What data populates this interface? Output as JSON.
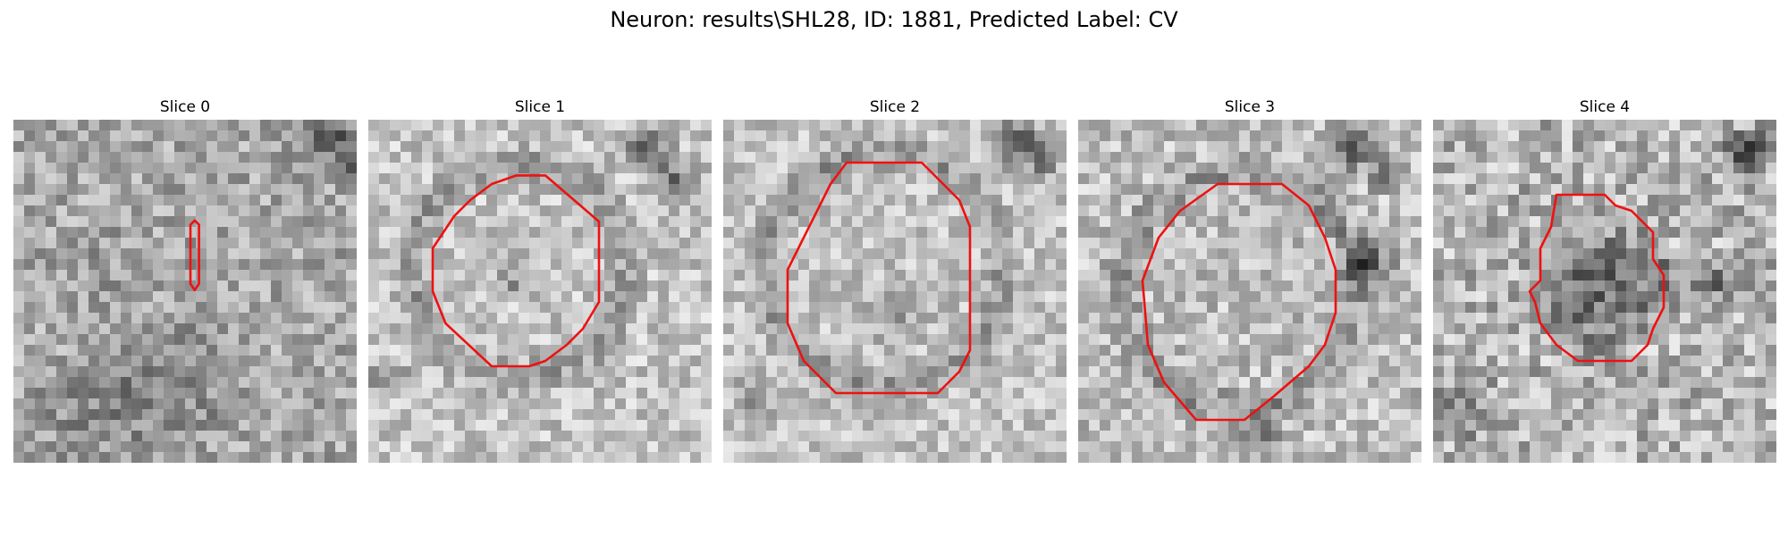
{
  "figure": {
    "title": "Neuron: results\\SHL28, ID: 1881, Predicted Label: CV"
  },
  "panels": [
    {
      "title": "Slice 0",
      "has_outline": true
    },
    {
      "title": "Slice 1",
      "has_outline": true
    },
    {
      "title": "Slice 2",
      "has_outline": true
    },
    {
      "title": "Slice 3",
      "has_outline": true
    },
    {
      "title": "Slice 4",
      "has_outline": true
    }
  ],
  "colors": {
    "outline": "#ee1111",
    "background": "#ffffff"
  }
}
